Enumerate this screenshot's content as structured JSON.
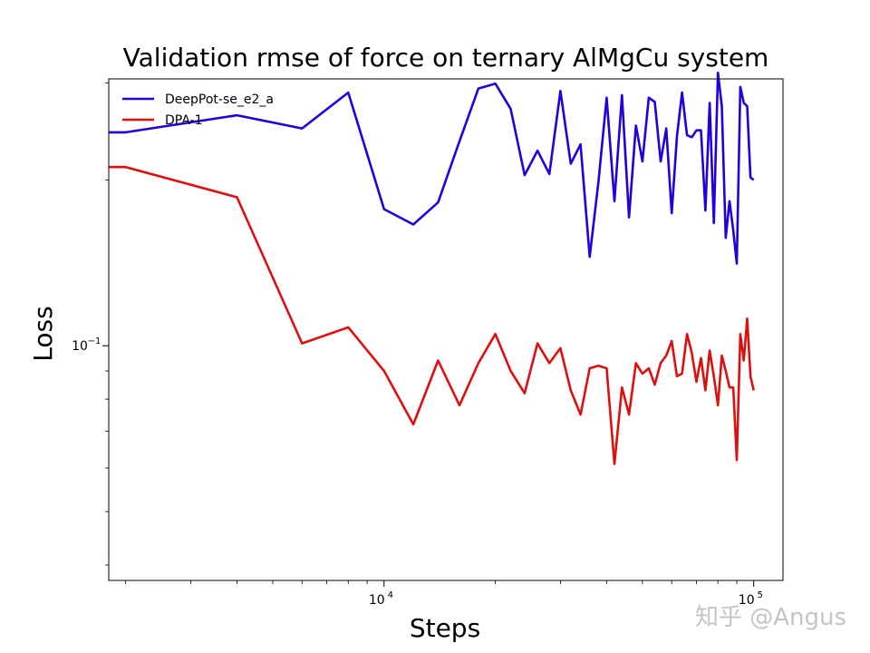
{
  "chart_data": {
    "type": "line",
    "title": "Validation rmse of force on ternary AlMgCu system",
    "xlabel": "Steps",
    "ylabel": "Loss",
    "xscale": "log",
    "yscale": "log",
    "xlim": [
      1800,
      120000
    ],
    "ylim": [
      0.0375,
      0.305
    ],
    "xticks": [
      {
        "value": 10000,
        "base": "10",
        "exp": "4"
      },
      {
        "value": 100000,
        "base": "10",
        "exp": "5"
      }
    ],
    "yticks": [
      {
        "value": 0.1,
        "base": "10",
        "exp": "−1"
      }
    ],
    "legend_position": "top-left",
    "series": [
      {
        "name": "DeepPot-se_e2_a",
        "color": "#2200dd",
        "x": [
          1800,
          2000,
          4000,
          6000,
          8000,
          10000,
          12000,
          14000,
          16000,
          18000,
          20000,
          22000,
          24000,
          26000,
          28000,
          30000,
          32000,
          34000,
          36000,
          38000,
          40000,
          42000,
          44000,
          46000,
          48000,
          50000,
          52000,
          54000,
          56000,
          58000,
          60000,
          62000,
          64000,
          66000,
          68000,
          70000,
          72000,
          74000,
          76000,
          78000,
          80000,
          82000,
          84000,
          86000,
          88000,
          90000,
          92000,
          94000,
          96000,
          98000,
          100000
        ],
        "y": [
          0.244,
          0.244,
          0.262,
          0.248,
          0.288,
          0.177,
          0.166,
          0.182,
          0.235,
          0.293,
          0.299,
          0.269,
          0.204,
          0.226,
          0.205,
          0.29,
          0.214,
          0.232,
          0.145,
          0.198,
          0.282,
          0.183,
          0.285,
          0.171,
          0.251,
          0.216,
          0.282,
          0.277,
          0.216,
          0.248,
          0.174,
          0.24,
          0.288,
          0.241,
          0.239,
          0.246,
          0.246,
          0.176,
          0.276,
          0.167,
          0.313,
          0.272,
          0.157,
          0.183,
          0.162,
          0.141,
          0.295,
          0.276,
          0.272,
          0.202,
          0.2
        ]
      },
      {
        "name": "DPA-1",
        "color": "#dd0f0f",
        "x": [
          1800,
          2000,
          4000,
          6000,
          8000,
          10000,
          12000,
          14000,
          16000,
          18000,
          20000,
          22000,
          24000,
          26000,
          28000,
          30000,
          32000,
          34000,
          36000,
          38000,
          40000,
          42000,
          44000,
          46000,
          48000,
          50000,
          52000,
          54000,
          56000,
          58000,
          60000,
          62000,
          64000,
          66000,
          68000,
          70000,
          72000,
          74000,
          76000,
          78000,
          80000,
          82000,
          84000,
          86000,
          88000,
          90000,
          92000,
          94000,
          96000,
          98000,
          100000
        ],
        "y": [
          0.211,
          0.211,
          0.186,
          0.101,
          0.108,
          0.09,
          0.072,
          0.094,
          0.078,
          0.093,
          0.105,
          0.09,
          0.082,
          0.101,
          0.093,
          0.099,
          0.083,
          0.075,
          0.091,
          0.092,
          0.091,
          0.061,
          0.084,
          0.075,
          0.093,
          0.089,
          0.091,
          0.085,
          0.093,
          0.096,
          0.102,
          0.088,
          0.089,
          0.105,
          0.097,
          0.086,
          0.095,
          0.083,
          0.098,
          0.088,
          0.078,
          0.096,
          0.09,
          0.084,
          0.084,
          0.062,
          0.105,
          0.094,
          0.112,
          0.088,
          0.083
        ]
      }
    ]
  },
  "watermark": "知乎 @Angus"
}
